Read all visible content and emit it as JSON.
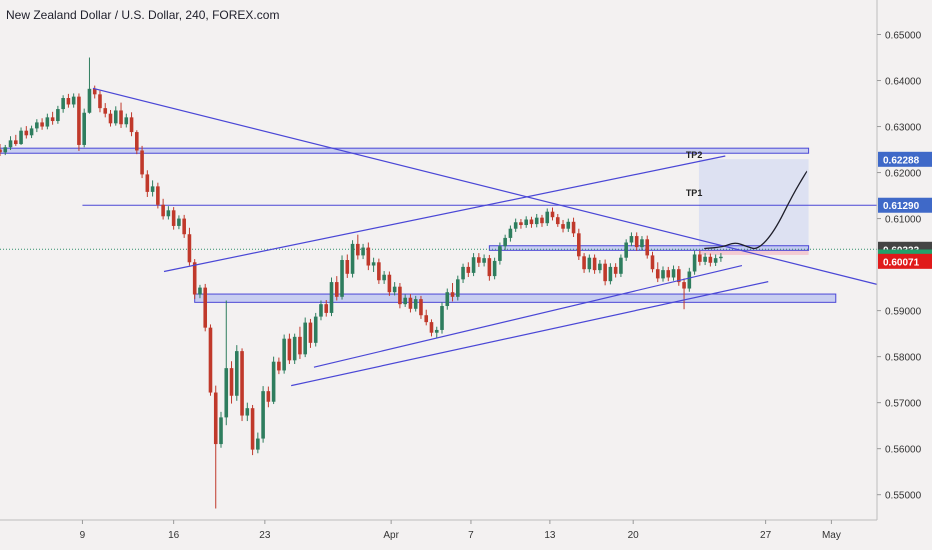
{
  "header": {
    "title": "New Zealand Dollar / U.S. Dollar, 240, FOREX.com"
  },
  "colors": {
    "background": "#f3f1f1",
    "bull": "#2e7d5e",
    "bear": "#c0392b",
    "drawing": "#4a47d6",
    "zone_fill": "#b9c1f0",
    "target_fill": "#d8def2",
    "stop_fill": "#f3c6cf"
  },
  "chart_data": {
    "type": "candlestick",
    "symbol": "NZDUSD",
    "timeframe": "240",
    "ylim": [
      0.5445,
      0.6575
    ],
    "xlim": [
      0,
      100
    ],
    "x_ticks": [
      {
        "label": "9",
        "x": 9.4
      },
      {
        "label": "16",
        "x": 19.8
      },
      {
        "label": "23",
        "x": 30.2
      },
      {
        "label": "Apr",
        "x": 44.6
      },
      {
        "label": "7",
        "x": 53.7
      },
      {
        "label": "13",
        "x": 62.7
      },
      {
        "label": "20",
        "x": 72.2
      },
      {
        "label": "27",
        "x": 87.3
      },
      {
        "label": "May",
        "x": 94.8
      }
    ],
    "y_ticks": [
      "0.65000",
      "0.64000",
      "0.63000",
      "0.62000",
      "0.61000",
      "0.59000",
      "0.58000",
      "0.57000",
      "0.56000",
      "0.55000"
    ],
    "y_tick_values": [
      0.65,
      0.64,
      0.63,
      0.62,
      0.61,
      0.59,
      0.58,
      0.57,
      0.56,
      0.55
    ],
    "price_labels": [
      {
        "text": "0.62288",
        "value": 0.62288,
        "bg": "#3f69c8",
        "fg": "#ffffff"
      },
      {
        "text": "0.61290",
        "value": 0.6129,
        "bg": "#3f69c8",
        "fg": "#ffffff"
      },
      {
        "text": "0.60333",
        "value": 0.60333,
        "bg": "#444444",
        "fg": "#ffffff"
      },
      {
        "text": "0.60165",
        "value": 0.60165,
        "bg": "#23a06a",
        "fg": "#ffffff"
      },
      {
        "text": "0.60071",
        "value": 0.60071,
        "bg": "#e01a1a",
        "fg": "#ffffff"
      }
    ],
    "annotations": [
      {
        "text": "TP2",
        "x": 78.2,
        "y": 0.6232
      },
      {
        "text": "TP1",
        "x": 78.2,
        "y": 0.6149
      }
    ],
    "zones": [
      {
        "name": "upper-resistance",
        "x0": 0,
        "x1": 92.2,
        "y0": 0.6253,
        "y1": 0.6242
      },
      {
        "name": "mid-zone",
        "x0": 55.8,
        "x1": 92.2,
        "y0": 0.6041,
        "y1": 0.6031
      },
      {
        "name": "lower-support",
        "x0": 22.2,
        "x1": 95.3,
        "y0": 0.5936,
        "y1": 0.5918
      }
    ],
    "trend_lines": [
      {
        "name": "descending-trendline",
        "x0": 10.6,
        "y0": 0.6383,
        "x1": 100,
        "y1": 0.5957
      },
      {
        "name": "upper-channel",
        "x0": 18.7,
        "y0": 0.5985,
        "x1": 82.7,
        "y1": 0.6236
      },
      {
        "name": "lower-channel-1",
        "x0": 35.8,
        "y0": 0.5777,
        "x1": 84.6,
        "y1": 0.5998
      },
      {
        "name": "lower-channel-2",
        "x0": 33.2,
        "y0": 0.5737,
        "x1": 87.6,
        "y1": 0.5963
      }
    ],
    "horizontal_lines": [
      {
        "name": "tp1-line",
        "value": 0.6129,
        "x0": 9.4,
        "x1": 100
      },
      {
        "name": "current-price-line",
        "value": 0.60333,
        "x0": 0,
        "x1": 100,
        "dotted": true
      }
    ],
    "position_box": {
      "x0": 79.7,
      "x1": 92.2,
      "entry": 0.6033,
      "target": 0.6229,
      "stop": 0.6021
    },
    "projection": [
      [
        80.3,
        0.6035
      ],
      [
        82.4,
        0.6038
      ],
      [
        83.8,
        0.6049
      ],
      [
        85.2,
        0.6039
      ],
      [
        86.4,
        0.6032
      ],
      [
        88.3,
        0.6072
      ],
      [
        90.4,
        0.6152
      ],
      [
        92.0,
        0.6203
      ]
    ],
    "candles": [
      [
        0.0,
        0.625,
        0.6262,
        0.6236,
        0.6244
      ],
      [
        0.6,
        0.6244,
        0.626,
        0.6238,
        0.6255
      ],
      [
        1.2,
        0.6255,
        0.6279,
        0.6249,
        0.627
      ],
      [
        1.8,
        0.627,
        0.6282,
        0.6258,
        0.6262
      ],
      [
        2.4,
        0.6262,
        0.6298,
        0.626,
        0.6291
      ],
      [
        3.0,
        0.6291,
        0.6301,
        0.6274,
        0.6281
      ],
      [
        3.6,
        0.6281,
        0.6302,
        0.6275,
        0.6296
      ],
      [
        4.2,
        0.6296,
        0.6316,
        0.6288,
        0.6309
      ],
      [
        4.8,
        0.6309,
        0.6318,
        0.6293,
        0.63
      ],
      [
        5.4,
        0.63,
        0.6328,
        0.6294,
        0.632
      ],
      [
        6.0,
        0.632,
        0.6332,
        0.6304,
        0.6312
      ],
      [
        6.6,
        0.6312,
        0.6345,
        0.6306,
        0.6338
      ],
      [
        7.2,
        0.6338,
        0.6368,
        0.633,
        0.6362
      ],
      [
        7.8,
        0.6362,
        0.6371,
        0.6341,
        0.6348
      ],
      [
        8.4,
        0.6348,
        0.6372,
        0.6341,
        0.6365
      ],
      [
        9.0,
        0.6365,
        0.6372,
        0.6247,
        0.626
      ],
      [
        9.6,
        0.626,
        0.6339,
        0.6255,
        0.633
      ],
      [
        10.2,
        0.633,
        0.645,
        0.6328,
        0.6382
      ],
      [
        10.8,
        0.6382,
        0.6389,
        0.6361,
        0.637
      ],
      [
        11.4,
        0.637,
        0.6378,
        0.6331,
        0.634
      ],
      [
        12.0,
        0.634,
        0.6351,
        0.632,
        0.6328
      ],
      [
        12.6,
        0.6328,
        0.6336,
        0.63,
        0.6307
      ],
      [
        13.2,
        0.6307,
        0.6344,
        0.6302,
        0.6335
      ],
      [
        13.8,
        0.6335,
        0.6352,
        0.6297,
        0.6305
      ],
      [
        14.4,
        0.6305,
        0.6328,
        0.6298,
        0.632
      ],
      [
        15.0,
        0.632,
        0.6331,
        0.6279,
        0.6288
      ],
      [
        15.6,
        0.6288,
        0.6292,
        0.624,
        0.6248
      ],
      [
        16.2,
        0.6248,
        0.6258,
        0.6188,
        0.6196
      ],
      [
        16.8,
        0.6196,
        0.6205,
        0.6147,
        0.6158
      ],
      [
        17.4,
        0.6158,
        0.6183,
        0.6148,
        0.617
      ],
      [
        18.0,
        0.617,
        0.6178,
        0.6122,
        0.613
      ],
      [
        18.6,
        0.613,
        0.6143,
        0.6098,
        0.6105
      ],
      [
        19.2,
        0.6105,
        0.6127,
        0.6098,
        0.6118
      ],
      [
        19.8,
        0.6118,
        0.6125,
        0.6076,
        0.6084
      ],
      [
        20.4,
        0.6084,
        0.6107,
        0.6077,
        0.61
      ],
      [
        21.0,
        0.61,
        0.6108,
        0.6058,
        0.6066
      ],
      [
        21.6,
        0.6066,
        0.608,
        0.5998,
        0.6005
      ],
      [
        22.2,
        0.6005,
        0.6012,
        0.5925,
        0.5935
      ],
      [
        22.8,
        0.5935,
        0.5956,
        0.5927,
        0.595
      ],
      [
        23.4,
        0.595,
        0.5958,
        0.5855,
        0.5863
      ],
      [
        24.0,
        0.5863,
        0.587,
        0.5715,
        0.5722
      ],
      [
        24.6,
        0.5722,
        0.5737,
        0.547,
        0.561
      ],
      [
        25.2,
        0.561,
        0.568,
        0.5602,
        0.5668
      ],
      [
        25.8,
        0.5668,
        0.5922,
        0.5651,
        0.5775
      ],
      [
        26.4,
        0.5775,
        0.579,
        0.5698,
        0.5715
      ],
      [
        27.0,
        0.5715,
        0.5825,
        0.5704,
        0.5812
      ],
      [
        27.6,
        0.5812,
        0.5818,
        0.566,
        0.5672
      ],
      [
        28.2,
        0.5672,
        0.57,
        0.566,
        0.5688
      ],
      [
        28.8,
        0.5688,
        0.5695,
        0.5586,
        0.5598
      ],
      [
        29.4,
        0.5598,
        0.5635,
        0.559,
        0.5622
      ],
      [
        30.0,
        0.5622,
        0.5736,
        0.5613,
        0.5725
      ],
      [
        30.6,
        0.5725,
        0.5735,
        0.569,
        0.5702
      ],
      [
        31.2,
        0.5702,
        0.58,
        0.5697,
        0.5789
      ],
      [
        31.8,
        0.5789,
        0.5798,
        0.5762,
        0.577
      ],
      [
        32.4,
        0.577,
        0.5848,
        0.5763,
        0.5839
      ],
      [
        33.0,
        0.5839,
        0.585,
        0.5784,
        0.5792
      ],
      [
        33.6,
        0.5792,
        0.585,
        0.5784,
        0.5843
      ],
      [
        34.2,
        0.5843,
        0.5865,
        0.5795,
        0.5805
      ],
      [
        34.8,
        0.5805,
        0.5885,
        0.5799,
        0.5874
      ],
      [
        35.4,
        0.5874,
        0.5882,
        0.5819,
        0.583
      ],
      [
        36.0,
        0.583,
        0.5895,
        0.5822,
        0.5887
      ],
      [
        36.6,
        0.5887,
        0.5922,
        0.5879,
        0.5914
      ],
      [
        37.2,
        0.5914,
        0.5923,
        0.5887,
        0.5895
      ],
      [
        37.8,
        0.5895,
        0.5972,
        0.5888,
        0.5962
      ],
      [
        38.4,
        0.5962,
        0.5975,
        0.5922,
        0.593
      ],
      [
        39.0,
        0.593,
        0.602,
        0.5924,
        0.601
      ],
      [
        39.6,
        0.601,
        0.6022,
        0.5971,
        0.598
      ],
      [
        40.2,
        0.598,
        0.6053,
        0.5972,
        0.6045
      ],
      [
        40.8,
        0.6045,
        0.6065,
        0.6011,
        0.602
      ],
      [
        41.4,
        0.602,
        0.6045,
        0.6012,
        0.6037
      ],
      [
        42.0,
        0.6037,
        0.6048,
        0.5988,
        0.5998
      ],
      [
        42.6,
        0.5998,
        0.6015,
        0.5984,
        0.6005
      ],
      [
        43.2,
        0.6005,
        0.6013,
        0.5958,
        0.5966
      ],
      [
        43.8,
        0.5966,
        0.5986,
        0.5958,
        0.5978
      ],
      [
        44.4,
        0.5978,
        0.5985,
        0.5932,
        0.594
      ],
      [
        45.0,
        0.594,
        0.5962,
        0.5933,
        0.5952
      ],
      [
        45.6,
        0.5952,
        0.596,
        0.5905,
        0.5914
      ],
      [
        46.2,
        0.5914,
        0.5935,
        0.5908,
        0.5928
      ],
      [
        46.8,
        0.5928,
        0.5936,
        0.5896,
        0.5904
      ],
      [
        47.4,
        0.5904,
        0.5932,
        0.5898,
        0.5925
      ],
      [
        48.0,
        0.5925,
        0.5932,
        0.5882,
        0.589
      ],
      [
        48.6,
        0.589,
        0.5902,
        0.5868,
        0.5875
      ],
      [
        49.2,
        0.5875,
        0.5881,
        0.5844,
        0.5852
      ],
      [
        49.8,
        0.5852,
        0.5865,
        0.584,
        0.5858
      ],
      [
        50.4,
        0.5858,
        0.5918,
        0.585,
        0.591
      ],
      [
        51.0,
        0.591,
        0.5948,
        0.5902,
        0.594
      ],
      [
        51.6,
        0.594,
        0.596,
        0.592,
        0.593
      ],
      [
        52.2,
        0.593,
        0.5976,
        0.5922,
        0.5968
      ],
      [
        52.8,
        0.5968,
        0.6002,
        0.596,
        0.5995
      ],
      [
        53.4,
        0.5995,
        0.6005,
        0.5973,
        0.5982
      ],
      [
        54.0,
        0.5982,
        0.6025,
        0.5975,
        0.6016
      ],
      [
        54.6,
        0.6016,
        0.6025,
        0.5995,
        0.6004
      ],
      [
        55.2,
        0.6004,
        0.6022,
        0.5996,
        0.6014
      ],
      [
        55.8,
        0.6014,
        0.6021,
        0.5965,
        0.5975
      ],
      [
        56.4,
        0.5975,
        0.6015,
        0.5968,
        0.6008
      ],
      [
        57.0,
        0.6008,
        0.6048,
        0.6,
        0.604
      ],
      [
        57.6,
        0.604,
        0.6065,
        0.6032,
        0.6058
      ],
      [
        58.2,
        0.6058,
        0.6085,
        0.605,
        0.6078
      ],
      [
        58.8,
        0.6078,
        0.61,
        0.6071,
        0.6092
      ],
      [
        59.4,
        0.6092,
        0.6099,
        0.6078,
        0.6086
      ],
      [
        60.0,
        0.6086,
        0.6105,
        0.608,
        0.6098
      ],
      [
        60.6,
        0.6098,
        0.6104,
        0.608,
        0.6088
      ],
      [
        61.2,
        0.6088,
        0.611,
        0.6081,
        0.6102
      ],
      [
        61.8,
        0.6102,
        0.6108,
        0.6082,
        0.609
      ],
      [
        62.4,
        0.609,
        0.6122,
        0.6084,
        0.6115
      ],
      [
        63.0,
        0.6115,
        0.6124,
        0.6096,
        0.6103
      ],
      [
        63.6,
        0.6103,
        0.611,
        0.6082,
        0.6088
      ],
      [
        64.2,
        0.6088,
        0.6097,
        0.607,
        0.6078
      ],
      [
        64.8,
        0.6078,
        0.61,
        0.6071,
        0.6093
      ],
      [
        65.4,
        0.6093,
        0.6102,
        0.606,
        0.6068
      ],
      [
        66.0,
        0.6068,
        0.6078,
        0.601,
        0.6018
      ],
      [
        66.6,
        0.6018,
        0.6025,
        0.5982,
        0.599
      ],
      [
        67.2,
        0.599,
        0.6022,
        0.5983,
        0.6015
      ],
      [
        67.8,
        0.6015,
        0.6022,
        0.598,
        0.5988
      ],
      [
        68.4,
        0.5988,
        0.601,
        0.5981,
        0.6002
      ],
      [
        69.0,
        0.6002,
        0.6011,
        0.5955,
        0.5964
      ],
      [
        69.6,
        0.5964,
        0.6003,
        0.5957,
        0.5995
      ],
      [
        70.2,
        0.5995,
        0.6003,
        0.5972,
        0.598
      ],
      [
        70.8,
        0.598,
        0.6022,
        0.5973,
        0.6015
      ],
      [
        71.4,
        0.6015,
        0.6055,
        0.6008,
        0.6048
      ],
      [
        72.0,
        0.6048,
        0.607,
        0.604,
        0.6062
      ],
      [
        72.6,
        0.6062,
        0.607,
        0.603,
        0.6038
      ],
      [
        73.2,
        0.6038,
        0.6062,
        0.6031,
        0.6055
      ],
      [
        73.8,
        0.6055,
        0.6063,
        0.6013,
        0.602
      ],
      [
        74.4,
        0.602,
        0.6028,
        0.5983,
        0.599
      ],
      [
        75.0,
        0.599,
        0.6005,
        0.5962,
        0.597
      ],
      [
        75.6,
        0.597,
        0.5996,
        0.5963,
        0.5988
      ],
      [
        76.2,
        0.5988,
        0.5995,
        0.5964,
        0.5972
      ],
      [
        76.8,
        0.5972,
        0.5998,
        0.5965,
        0.599
      ],
      [
        77.4,
        0.599,
        0.5997,
        0.5954,
        0.5962
      ],
      [
        78.0,
        0.5962,
        0.597,
        0.5903,
        0.5948
      ],
      [
        78.6,
        0.5948,
        0.5993,
        0.5941,
        0.5985
      ],
      [
        79.2,
        0.5985,
        0.603,
        0.5978,
        0.6022
      ],
      [
        79.8,
        0.6022,
        0.603,
        0.5998,
        0.6006
      ],
      [
        80.4,
        0.6006,
        0.6025,
        0.5999,
        0.6017
      ],
      [
        81.0,
        0.6017,
        0.6024,
        0.5996,
        0.6004
      ],
      [
        81.6,
        0.6004,
        0.6022,
        0.5997,
        0.6014
      ],
      [
        82.2,
        0.6014,
        0.6025,
        0.6006,
        0.6017
      ]
    ]
  }
}
